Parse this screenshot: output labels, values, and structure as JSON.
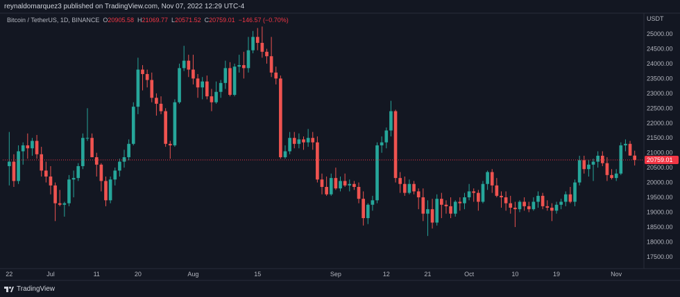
{
  "header": {
    "publisher_line": "reynaldomarquez3 published on TradingView.com, Nov 07, 2022 12:29 UTC-4"
  },
  "legend": {
    "symbol": "Bitcoin / TetherUS, 1D, BINANCE",
    "open_label": "O",
    "open": "20905.58",
    "high_label": "H",
    "high": "21069.77",
    "low_label": "L",
    "low": "20571.52",
    "close_label": "C",
    "close": "20759.01",
    "change": "−146.57 (−0.70%)"
  },
  "footer": {
    "brand": "TradingView"
  },
  "colors": {
    "up": "#26a69a",
    "down": "#ef5350",
    "background": "#131722",
    "price_line": "#f23645"
  },
  "chart_data": {
    "type": "candlestick",
    "currency": "USDT",
    "y_ticks": [
      17500,
      18000,
      18500,
      19000,
      19500,
      20000,
      20500,
      21000,
      21500,
      22000,
      22500,
      23000,
      23500,
      24000,
      24500,
      25000
    ],
    "y_tick_labels": [
      "17500.00",
      "18000.00",
      "18500.00",
      "19000.00",
      "19500.00",
      "20000.00",
      "20500.00",
      "21000.00",
      "21500.00",
      "22000.00",
      "22500.00",
      "23000.00",
      "23500.00",
      "24000.00",
      "24500.00",
      "25000.00"
    ],
    "ylim": [
      17100,
      25700
    ],
    "x_tick_labels": [
      {
        "label": "22",
        "index": 0
      },
      {
        "label": "Jul",
        "index": 9
      },
      {
        "label": "11",
        "index": 19
      },
      {
        "label": "20",
        "index": 28
      },
      {
        "label": "Aug",
        "index": 40
      },
      {
        "label": "15",
        "index": 54
      },
      {
        "label": "Sep",
        "index": 71
      },
      {
        "label": "12",
        "index": 82
      },
      {
        "label": "21",
        "index": 91
      },
      {
        "label": "Oct",
        "index": 100
      },
      {
        "label": "10",
        "index": 110
      },
      {
        "label": "19",
        "index": 119
      },
      {
        "label": "Nov",
        "index": 132
      }
    ],
    "last_price_label": "20759.01",
    "last_close": 20759.01,
    "candles": [
      {
        "o": 20550,
        "h": 21700,
        "l": 19900,
        "c": 20700
      },
      {
        "o": 20700,
        "h": 20950,
        "l": 19850,
        "c": 20050
      },
      {
        "o": 20050,
        "h": 21250,
        "l": 19950,
        "c": 21050
      },
      {
        "o": 21050,
        "h": 21350,
        "l": 20600,
        "c": 21250
      },
      {
        "o": 21250,
        "h": 21650,
        "l": 20800,
        "c": 21150
      },
      {
        "o": 21150,
        "h": 21500,
        "l": 20900,
        "c": 21400
      },
      {
        "o": 21400,
        "h": 21600,
        "l": 20800,
        "c": 20950
      },
      {
        "o": 20950,
        "h": 21200,
        "l": 20200,
        "c": 20400
      },
      {
        "o": 20400,
        "h": 20700,
        "l": 20000,
        "c": 20200
      },
      {
        "o": 20200,
        "h": 20550,
        "l": 19600,
        "c": 19900
      },
      {
        "o": 19900,
        "h": 20000,
        "l": 18700,
        "c": 19300
      },
      {
        "o": 19300,
        "h": 19750,
        "l": 19200,
        "c": 19250
      },
      {
        "o": 19250,
        "h": 19350,
        "l": 18850,
        "c": 19300
      },
      {
        "o": 19300,
        "h": 20250,
        "l": 19200,
        "c": 20100
      },
      {
        "o": 20100,
        "h": 20400,
        "l": 19500,
        "c": 20150
      },
      {
        "o": 20150,
        "h": 20650,
        "l": 20050,
        "c": 20550
      },
      {
        "o": 20550,
        "h": 21650,
        "l": 20450,
        "c": 21500
      },
      {
        "o": 21500,
        "h": 22500,
        "l": 21400,
        "c": 21500
      },
      {
        "o": 21500,
        "h": 21650,
        "l": 20850,
        "c": 20850
      },
      {
        "o": 20850,
        "h": 21000,
        "l": 20200,
        "c": 20600
      },
      {
        "o": 20600,
        "h": 20650,
        "l": 19700,
        "c": 20050
      },
      {
        "o": 20050,
        "h": 20200,
        "l": 19200,
        "c": 19400
      },
      {
        "o": 19400,
        "h": 20200,
        "l": 19300,
        "c": 20100
      },
      {
        "o": 20100,
        "h": 20500,
        "l": 19900,
        "c": 20400
      },
      {
        "o": 20400,
        "h": 20800,
        "l": 20200,
        "c": 20700
      },
      {
        "o": 20700,
        "h": 21100,
        "l": 20500,
        "c": 20850
      },
      {
        "o": 20850,
        "h": 21450,
        "l": 20750,
        "c": 21300
      },
      {
        "o": 21300,
        "h": 22700,
        "l": 21250,
        "c": 22550
      },
      {
        "o": 22550,
        "h": 24200,
        "l": 22300,
        "c": 23800
      },
      {
        "o": 23800,
        "h": 23950,
        "l": 23100,
        "c": 23650
      },
      {
        "o": 23650,
        "h": 23800,
        "l": 23200,
        "c": 23450
      },
      {
        "o": 23450,
        "h": 23700,
        "l": 22700,
        "c": 22850
      },
      {
        "o": 22850,
        "h": 23000,
        "l": 22250,
        "c": 22650
      },
      {
        "o": 22650,
        "h": 22900,
        "l": 22300,
        "c": 22400
      },
      {
        "o": 22400,
        "h": 22500,
        "l": 21200,
        "c": 21300
      },
      {
        "o": 21300,
        "h": 21400,
        "l": 20800,
        "c": 21250
      },
      {
        "o": 21250,
        "h": 22800,
        "l": 21200,
        "c": 22700
      },
      {
        "o": 22700,
        "h": 24000,
        "l": 22650,
        "c": 23850
      },
      {
        "o": 23850,
        "h": 24600,
        "l": 23750,
        "c": 24100
      },
      {
        "o": 24100,
        "h": 24300,
        "l": 23550,
        "c": 23800
      },
      {
        "o": 23800,
        "h": 24300,
        "l": 23300,
        "c": 23500
      },
      {
        "o": 23500,
        "h": 23650,
        "l": 22850,
        "c": 23200
      },
      {
        "o": 23200,
        "h": 23550,
        "l": 22800,
        "c": 23400
      },
      {
        "o": 23400,
        "h": 23600,
        "l": 22800,
        "c": 22900
      },
      {
        "o": 22900,
        "h": 23150,
        "l": 22400,
        "c": 22700
      },
      {
        "o": 22700,
        "h": 23400,
        "l": 22650,
        "c": 23050
      },
      {
        "o": 23050,
        "h": 23450,
        "l": 22850,
        "c": 23350
      },
      {
        "o": 23350,
        "h": 24100,
        "l": 23150,
        "c": 23850
      },
      {
        "o": 23850,
        "h": 24050,
        "l": 22900,
        "c": 22950
      },
      {
        "o": 22950,
        "h": 24000,
        "l": 22900,
        "c": 23900
      },
      {
        "o": 23900,
        "h": 24300,
        "l": 23700,
        "c": 23950
      },
      {
        "o": 23950,
        "h": 24400,
        "l": 23500,
        "c": 23850
      },
      {
        "o": 23850,
        "h": 24900,
        "l": 23700,
        "c": 24450
      },
      {
        "o": 24450,
        "h": 25100,
        "l": 24350,
        "c": 24900
      },
      {
        "o": 24900,
        "h": 25200,
        "l": 24450,
        "c": 24700
      },
      {
        "o": 24700,
        "h": 25250,
        "l": 24200,
        "c": 24400
      },
      {
        "o": 24400,
        "h": 24500,
        "l": 24000,
        "c": 24250
      },
      {
        "o": 24250,
        "h": 24900,
        "l": 23550,
        "c": 23700
      },
      {
        "o": 23700,
        "h": 23900,
        "l": 23300,
        "c": 23500
      },
      {
        "o": 23500,
        "h": 23600,
        "l": 20800,
        "c": 20850
      },
      {
        "o": 20850,
        "h": 21250,
        "l": 20800,
        "c": 21050
      },
      {
        "o": 21050,
        "h": 21700,
        "l": 20950,
        "c": 21500
      },
      {
        "o": 21500,
        "h": 21700,
        "l": 21150,
        "c": 21300
      },
      {
        "o": 21300,
        "h": 21650,
        "l": 21150,
        "c": 21450
      },
      {
        "o": 21450,
        "h": 21550,
        "l": 21100,
        "c": 21350
      },
      {
        "o": 21350,
        "h": 21800,
        "l": 21200,
        "c": 21500
      },
      {
        "o": 21500,
        "h": 21700,
        "l": 21100,
        "c": 21350
      },
      {
        "o": 21350,
        "h": 21550,
        "l": 20000,
        "c": 20100
      },
      {
        "o": 20100,
        "h": 20300,
        "l": 19600,
        "c": 19850
      },
      {
        "o": 19850,
        "h": 20200,
        "l": 19550,
        "c": 19600
      },
      {
        "o": 19600,
        "h": 20300,
        "l": 19550,
        "c": 20150
      },
      {
        "o": 20150,
        "h": 20500,
        "l": 19750,
        "c": 19800
      },
      {
        "o": 19800,
        "h": 20200,
        "l": 19700,
        "c": 20050
      },
      {
        "o": 20050,
        "h": 20300,
        "l": 19850,
        "c": 19900
      },
      {
        "o": 19900,
        "h": 20100,
        "l": 19700,
        "c": 19950
      },
      {
        "o": 19950,
        "h": 20050,
        "l": 19750,
        "c": 19850
      },
      {
        "o": 19850,
        "h": 20000,
        "l": 19300,
        "c": 19450
      },
      {
        "o": 19450,
        "h": 19700,
        "l": 18550,
        "c": 18800
      },
      {
        "o": 18800,
        "h": 19300,
        "l": 18600,
        "c": 19250
      },
      {
        "o": 19250,
        "h": 19550,
        "l": 19050,
        "c": 19400
      },
      {
        "o": 19400,
        "h": 21350,
        "l": 19300,
        "c": 21250
      },
      {
        "o": 21250,
        "h": 21550,
        "l": 21000,
        "c": 21350
      },
      {
        "o": 21350,
        "h": 21850,
        "l": 21150,
        "c": 21750
      },
      {
        "o": 21750,
        "h": 22750,
        "l": 21550,
        "c": 22400
      },
      {
        "o": 22400,
        "h": 22450,
        "l": 20000,
        "c": 20150
      },
      {
        "o": 20150,
        "h": 20350,
        "l": 19650,
        "c": 19950
      },
      {
        "o": 19950,
        "h": 20200,
        "l": 19550,
        "c": 19650
      },
      {
        "o": 19650,
        "h": 20100,
        "l": 19600,
        "c": 19950
      },
      {
        "o": 19950,
        "h": 20050,
        "l": 19600,
        "c": 19700
      },
      {
        "o": 19700,
        "h": 19800,
        "l": 19100,
        "c": 19500
      },
      {
        "o": 19500,
        "h": 19800,
        "l": 18700,
        "c": 18950
      },
      {
        "o": 18950,
        "h": 19400,
        "l": 18200,
        "c": 19100
      },
      {
        "o": 19100,
        "h": 19450,
        "l": 18450,
        "c": 18650
      },
      {
        "o": 18650,
        "h": 19600,
        "l": 18550,
        "c": 19450
      },
      {
        "o": 19450,
        "h": 19650,
        "l": 18800,
        "c": 19250
      },
      {
        "o": 19250,
        "h": 19400,
        "l": 18950,
        "c": 19200
      },
      {
        "o": 19200,
        "h": 19500,
        "l": 18800,
        "c": 18950
      },
      {
        "o": 18950,
        "h": 19400,
        "l": 18850,
        "c": 19350
      },
      {
        "o": 19350,
        "h": 19500,
        "l": 19050,
        "c": 19300
      },
      {
        "o": 19300,
        "h": 19650,
        "l": 19100,
        "c": 19500
      },
      {
        "o": 19500,
        "h": 19950,
        "l": 19400,
        "c": 19700
      },
      {
        "o": 19700,
        "h": 19800,
        "l": 19350,
        "c": 19650
      },
      {
        "o": 19650,
        "h": 19750,
        "l": 19050,
        "c": 19350
      },
      {
        "o": 19350,
        "h": 20050,
        "l": 19300,
        "c": 19950
      },
      {
        "o": 19950,
        "h": 20400,
        "l": 19750,
        "c": 20350
      },
      {
        "o": 20350,
        "h": 20450,
        "l": 19650,
        "c": 19900
      },
      {
        "o": 19900,
        "h": 20150,
        "l": 19500,
        "c": 19550
      },
      {
        "o": 19550,
        "h": 19700,
        "l": 19150,
        "c": 19500
      },
      {
        "o": 19500,
        "h": 19700,
        "l": 19050,
        "c": 19300
      },
      {
        "o": 19300,
        "h": 19550,
        "l": 18950,
        "c": 19150
      },
      {
        "o": 19150,
        "h": 19350,
        "l": 18500,
        "c": 19100
      },
      {
        "o": 19100,
        "h": 19400,
        "l": 19000,
        "c": 19350
      },
      {
        "o": 19350,
        "h": 19500,
        "l": 19050,
        "c": 19200
      },
      {
        "o": 19200,
        "h": 19350,
        "l": 19000,
        "c": 19100
      },
      {
        "o": 19100,
        "h": 19500,
        "l": 19050,
        "c": 19350
      },
      {
        "o": 19350,
        "h": 19700,
        "l": 19150,
        "c": 19550
      },
      {
        "o": 19550,
        "h": 19650,
        "l": 19100,
        "c": 19200
      },
      {
        "o": 19200,
        "h": 19400,
        "l": 19050,
        "c": 19150
      },
      {
        "o": 19150,
        "h": 19300,
        "l": 18700,
        "c": 19050
      },
      {
        "o": 19050,
        "h": 19350,
        "l": 18950,
        "c": 19250
      },
      {
        "o": 19250,
        "h": 19450,
        "l": 19100,
        "c": 19350
      },
      {
        "o": 19350,
        "h": 19700,
        "l": 19200,
        "c": 19600
      },
      {
        "o": 19600,
        "h": 19850,
        "l": 19300,
        "c": 19350
      },
      {
        "o": 19350,
        "h": 20100,
        "l": 19200,
        "c": 20000
      },
      {
        "o": 20000,
        "h": 20900,
        "l": 19900,
        "c": 20750
      },
      {
        "o": 20750,
        "h": 20900,
        "l": 20300,
        "c": 20450
      },
      {
        "o": 20450,
        "h": 20750,
        "l": 20200,
        "c": 20600
      },
      {
        "o": 20600,
        "h": 20800,
        "l": 20050,
        "c": 20700
      },
      {
        "o": 20700,
        "h": 21050,
        "l": 20500,
        "c": 20900
      },
      {
        "o": 20900,
        "h": 21050,
        "l": 20550,
        "c": 20650
      },
      {
        "o": 20650,
        "h": 20850,
        "l": 20050,
        "c": 20250
      },
      {
        "o": 20250,
        "h": 20450,
        "l": 20100,
        "c": 20150
      },
      {
        "o": 20150,
        "h": 20450,
        "l": 20050,
        "c": 20300
      },
      {
        "o": 20300,
        "h": 21350,
        "l": 20250,
        "c": 21250
      },
      {
        "o": 21250,
        "h": 21450,
        "l": 21050,
        "c": 21300
      },
      {
        "o": 21300,
        "h": 21400,
        "l": 20900,
        "c": 20905.58
      },
      {
        "o": 20905.58,
        "h": 21069.77,
        "l": 20571.52,
        "c": 20759.01
      }
    ]
  }
}
